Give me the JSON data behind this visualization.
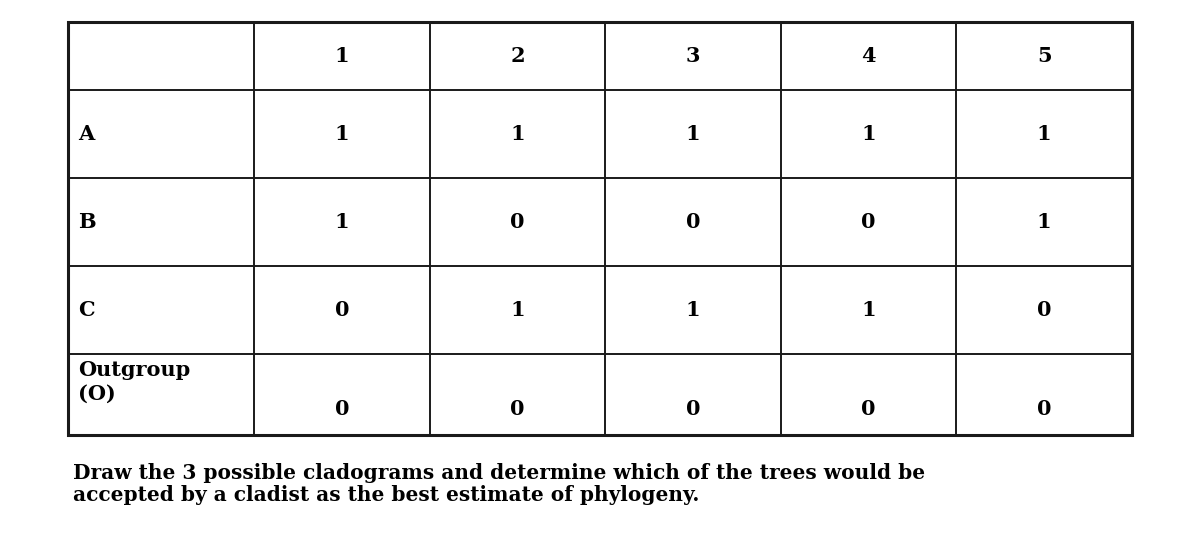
{
  "col_headers": [
    "",
    "1",
    "2",
    "3",
    "4",
    "5"
  ],
  "rows": [
    [
      "A",
      "1",
      "1",
      "1",
      "1",
      "1"
    ],
    [
      "B",
      "1",
      "0",
      "0",
      "0",
      "1"
    ],
    [
      "C",
      "0",
      "1",
      "1",
      "1",
      "0"
    ],
    [
      "Outgroup\n(O)",
      "0",
      "0",
      "0",
      "0",
      "0"
    ]
  ],
  "caption_line1": "Draw the 3 possible cladograms and determine which of the trees would be",
  "caption_line2": "accepted by a cladist as the best estimate of phylogeny.",
  "background_color": "#ffffff",
  "text_color": "#000000",
  "border_color": "#1a1a1a",
  "font_size": 15,
  "caption_font_size": 14.5
}
